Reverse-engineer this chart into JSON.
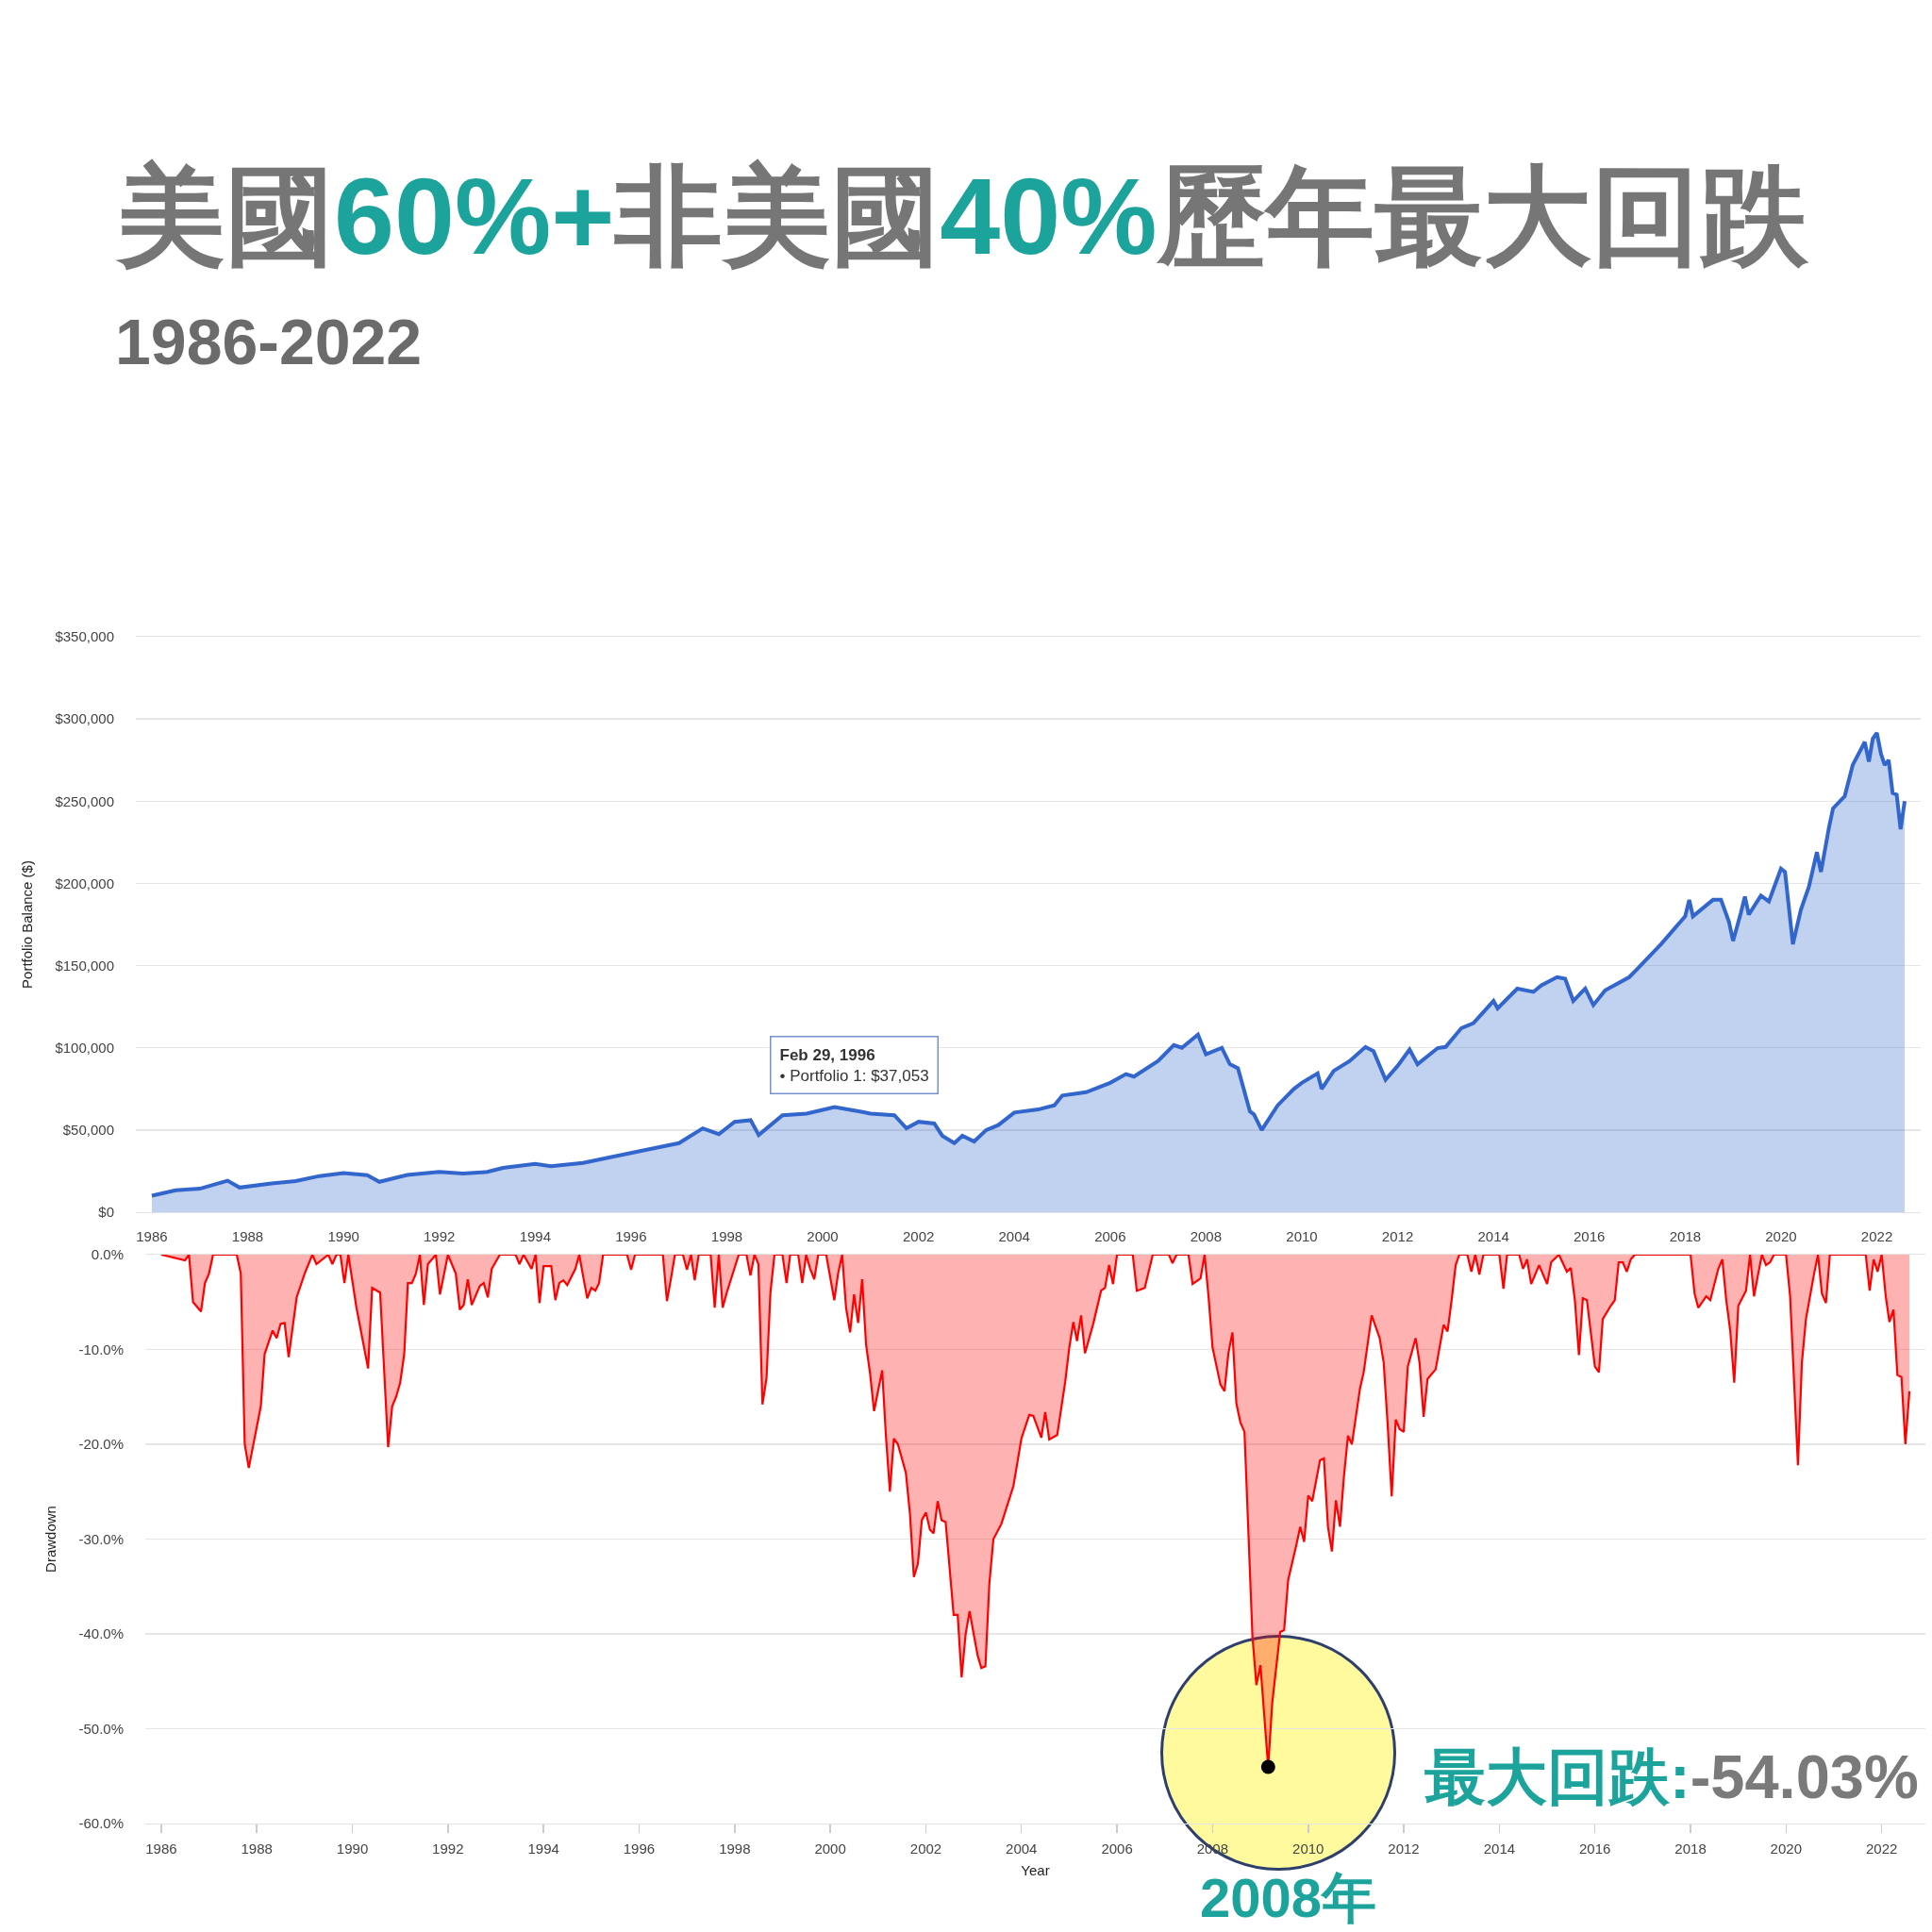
{
  "chart_data": [
    {
      "type": "area",
      "title": "美國60%+非美國40%歷年最大回跌",
      "subtitle": "1986-2022",
      "ylabel": "Portfolio Balance ($)",
      "color": "#3366cc",
      "grid": "y",
      "x": [
        "1986-01",
        "1986-07",
        "1987-01",
        "1987-08",
        "1987-11",
        "1988-07",
        "1989-01",
        "1989-07",
        "1990-01",
        "1990-07",
        "1990-10",
        "1991-05",
        "1992-01",
        "1992-07",
        "1993-01",
        "1993-05",
        "1994-01",
        "1994-05",
        "1995-01",
        "1995-07",
        "1996-02-29",
        "1996-07",
        "1997-01",
        "1997-07",
        "1997-11",
        "1998-03",
        "1998-07",
        "1998-09",
        "1999-03",
        "1999-09",
        "2000-04",
        "2000-11",
        "2001-01",
        "2001-07",
        "2001-10",
        "2002-01",
        "2002-05",
        "2002-07",
        "2002-10",
        "2002-12",
        "2003-03",
        "2003-06",
        "2003-09",
        "2004-01",
        "2004-07",
        "2004-11",
        "2005-01",
        "2005-07",
        "2006-01",
        "2006-05",
        "2006-07",
        "2007-01",
        "2007-05",
        "2007-07",
        "2007-11",
        "2008-01",
        "2008-05",
        "2008-07",
        "2008-09",
        "2008-12",
        "2009-01",
        "2009-03",
        "2009-07",
        "2009-11",
        "2010-01",
        "2010-05",
        "2010-06",
        "2010-09",
        "2011-01",
        "2011-05",
        "2011-07",
        "2011-10",
        "2012-01",
        "2012-04",
        "2012-06",
        "2012-11",
        "2013-01",
        "2013-05",
        "2013-08",
        "2014-01",
        "2014-02",
        "2014-07",
        "2014-11",
        "2015-01",
        "2015-05",
        "2015-07",
        "2015-09",
        "2015-12",
        "2016-02",
        "2016-05",
        "2016-11",
        "2017-01",
        "2017-07",
        "2018-01",
        "2018-02",
        "2018-03",
        "2018-08",
        "2018-10",
        "2018-12",
        "2019-01",
        "2019-03",
        "2019-04",
        "2019-05",
        "2019-08",
        "2019-10",
        "2020-01",
        "2020-02",
        "2020-04",
        "2020-06",
        "2020-08",
        "2020-10",
        "2020-11",
        "2021-01",
        "2021-02",
        "2021-05",
        "2021-07",
        "2021-10",
        "2021-11",
        "2021-12",
        "2022-01",
        "2022-02",
        "2022-03",
        "2022-04",
        "2022-05",
        "2022-06",
        "2022-07",
        "2022-08"
      ],
      "values": [
        10000,
        13300,
        14300,
        19200,
        15000,
        17500,
        18900,
        22000,
        23800,
        22500,
        18500,
        22700,
        24500,
        23500,
        24500,
        27000,
        29400,
        28000,
        30000,
        33000,
        37053,
        39000,
        42000,
        51000,
        47500,
        55000,
        56000,
        47000,
        59000,
        60000,
        64000,
        61000,
        60000,
        59000,
        51000,
        55000,
        54000,
        46500,
        42000,
        46500,
        43000,
        50000,
        53000,
        60600,
        62500,
        65000,
        71000,
        73000,
        78700,
        84000,
        82500,
        92000,
        101700,
        100000,
        108000,
        96000,
        100000,
        90000,
        87500,
        61400,
        59500,
        50000,
        65000,
        75000,
        78700,
        84400,
        75000,
        86000,
        92000,
        100500,
        98000,
        80600,
        89000,
        99000,
        90000,
        99800,
        100500,
        112000,
        115000,
        128500,
        124000,
        136000,
        134000,
        138000,
        143000,
        142000,
        128500,
        136000,
        126000,
        135000,
        143000,
        148000,
        163000,
        180000,
        190000,
        180000,
        190000,
        190000,
        176500,
        165000,
        182000,
        192000,
        181000,
        192600,
        189000,
        209000,
        207000,
        163000,
        184000,
        198000,
        219000,
        207000,
        234000,
        245600,
        253000,
        272000,
        286000,
        274000,
        288000,
        291600,
        279000,
        272000,
        275000,
        255000,
        254000,
        233000,
        250000
      ],
      "xlim": [
        "1985-09-01",
        "2022-12-01"
      ],
      "xticks": [
        "1986",
        "1988",
        "1990",
        "1992",
        "1994",
        "1996",
        "1998",
        "2000",
        "2002",
        "2004",
        "2006",
        "2008",
        "2010",
        "2012",
        "2014",
        "2016",
        "2018",
        "2020",
        "2022"
      ],
      "ylim": [
        0,
        350000
      ],
      "yticks": [
        {
          "value": 0,
          "label": "$0"
        },
        {
          "value": 50000,
          "label": "$50,000"
        },
        {
          "value": 100000,
          "label": "$100,000"
        },
        {
          "value": 150000,
          "label": "$150,000"
        },
        {
          "value": 200000,
          "label": "$200,000"
        },
        {
          "value": 250000,
          "label": "$250,000"
        },
        {
          "value": 300000,
          "label": "$300,000"
        },
        {
          "value": 350000,
          "label": "$350,000"
        }
      ],
      "annotations": [
        "Feb 29, 1996\n• Portfolio 1: $37,053"
      ]
    },
    {
      "type": "area",
      "xlabel": "Year",
      "ylabel": "Drawdown",
      "color": "#ff0000",
      "grid": "y",
      "x": [
        "1986-01",
        "1986-07",
        "1986-08",
        "1986-09",
        "1986-11",
        "1986-12",
        "1987-01",
        "1987-02",
        "1987-08",
        "1987-09",
        "1987-10",
        "1987-11",
        "1988-02",
        "1988-03",
        "1988-05",
        "1988-06",
        "1988-07",
        "1988-08",
        "1988-09",
        "1988-11",
        "1989-01",
        "1989-03",
        "1989-04",
        "1989-07",
        "1989-08",
        "1989-09",
        "1989-10",
        "1989-11",
        "1989-12",
        "1990-02",
        "1990-05",
        "1990-06",
        "1990-08",
        "1990-10",
        "1990-11",
        "1990-12",
        "1991-01",
        "1991-02",
        "1991-03",
        "1991-04",
        "1991-05",
        "1991-06",
        "1991-07",
        "1991-08",
        "1991-10",
        "1991-11",
        "1992-01",
        "1992-03",
        "1992-04",
        "1992-05",
        "1992-06",
        "1992-07",
        "1992-09",
        "1992-10",
        "1992-11",
        "1992-12",
        "1993-02",
        "1993-06",
        "1993-07",
        "1993-08",
        "1993-10",
        "1993-11",
        "1993-12",
        "1994-01",
        "1994-03",
        "1994-04",
        "1994-05",
        "1994-06",
        "1994-07",
        "1994-09",
        "1994-10",
        "1994-11",
        "1994-12",
        "1995-01",
        "1995-02",
        "1995-03",
        "1995-04",
        "1995-10",
        "1995-11",
        "1995-12",
        "1996-07",
        "1996-08",
        "1996-09",
        "1996-10",
        "1996-12",
        "1997-01",
        "1997-02",
        "1997-03",
        "1997-04",
        "1997-07",
        "1997-08",
        "1997-09",
        "1997-10",
        "1997-11",
        "1998-02",
        "1998-04",
        "1998-05",
        "1998-06",
        "1998-07",
        "1998-08",
        "1998-09",
        "1998-10",
        "1998-11",
        "1999-01",
        "1999-02",
        "1999-03",
        "1999-05",
        "1999-06",
        "1999-07",
        "1999-08",
        "1999-09",
        "1999-10",
        "1999-12",
        "2000-02",
        "2000-03",
        "2000-04",
        "2000-05",
        "2000-06",
        "2000-07",
        "2000-08",
        "2000-09",
        "2000-10",
        "2000-11",
        "2000-12",
        "2001-02",
        "2001-03",
        "2001-04",
        "2001-05",
        "2001-06",
        "2001-08",
        "2001-09",
        "2001-10",
        "2001-11",
        "2001-12",
        "2002-01",
        "2002-02",
        "2002-03",
        "2002-04",
        "2002-05",
        "2002-06",
        "2002-07",
        "2002-08",
        "2002-09",
        "2002-10",
        "2002-11",
        "2002-12",
        "2003-01",
        "2003-02",
        "2003-03",
        "2003-04",
        "2003-05",
        "2003-06",
        "2003-08",
        "2003-11",
        "2004-01",
        "2004-03",
        "2004-04",
        "2004-06",
        "2004-07",
        "2004-08",
        "2004-10",
        "2004-12",
        "2005-01",
        "2005-02",
        "2005-03",
        "2005-04",
        "2005-05",
        "2005-07",
        "2005-09",
        "2005-10",
        "2005-11",
        "2005-12",
        "2006-01",
        "2006-05",
        "2006-06",
        "2006-08",
        "2006-10",
        "2007-02",
        "2007-03",
        "2007-04",
        "2007-07",
        "2007-08",
        "2007-10",
        "2007-11",
        "2007-12",
        "2008-01",
        "2008-03",
        "2008-04",
        "2008-05",
        "2008-06",
        "2008-07",
        "2008-08",
        "2008-09",
        "2008-11",
        "2008-12",
        "2009-01",
        "2009-03",
        "2009-04",
        "2009-06",
        "2009-07",
        "2009-08",
        "2009-10",
        "2009-11",
        "2009-12",
        "2010-01",
        "2010-02",
        "2010-04",
        "2010-05",
        "2010-06",
        "2010-07",
        "2010-08",
        "2010-09",
        "2010-10",
        "2010-11",
        "2010-12",
        "2011-02",
        "2011-03",
        "2011-05",
        "2011-07",
        "2011-08",
        "2011-09",
        "2011-10",
        "2011-11",
        "2011-12",
        "2012-01",
        "2012-02",
        "2012-04",
        "2012-05",
        "2012-06",
        "2012-07",
        "2012-09",
        "2012-11",
        "2012-12",
        "2013-01",
        "2013-02",
        "2013-03",
        "2013-05",
        "2013-06",
        "2013-07",
        "2013-08",
        "2013-09",
        "2014-01",
        "2014-02",
        "2014-03",
        "2014-06",
        "2014-07",
        "2014-08",
        "2014-09",
        "2014-11",
        "2014-12",
        "2015-01",
        "2015-02",
        "2015-04",
        "2015-06",
        "2015-07",
        "2015-08",
        "2015-09",
        "2015-10",
        "2015-11",
        "2016-01",
        "2016-02",
        "2016-03",
        "2016-05",
        "2016-06",
        "2016-07",
        "2016-08",
        "2016-09",
        "2016-10",
        "2016-11",
        "2018-01",
        "2018-02",
        "2018-03",
        "2018-05",
        "2018-06",
        "2018-08",
        "2018-09",
        "2018-10",
        "2018-11",
        "2018-12",
        "2019-01",
        "2019-03",
        "2019-04",
        "2019-05",
        "2019-06",
        "2019-07",
        "2019-08",
        "2019-09",
        "2019-10",
        "2020-01",
        "2020-02",
        "2020-04",
        "2020-05",
        "2020-06",
        "2020-08",
        "2020-09",
        "2020-10",
        "2020-11",
        "2020-12",
        "2021-09",
        "2021-10",
        "2021-11",
        "2021-12",
        "2022-01",
        "2022-02",
        "2022-03",
        "2022-04",
        "2022-05",
        "2022-06",
        "2022-07",
        "2022-08"
      ],
      "values": [
        0,
        -0.6,
        0,
        -5,
        -6,
        -3,
        -2,
        0,
        0,
        -2,
        -20,
        -22.5,
        -16,
        -10.5,
        -8,
        -8.8,
        -7.3,
        -7.2,
        -10.8,
        -4.5,
        -2,
        0,
        -1,
        0,
        -1,
        0,
        0,
        -3,
        0,
        -5.6,
        -12,
        -3.5,
        -4,
        -20.3,
        -16,
        -15,
        -13.5,
        -10.5,
        -3,
        -3,
        -2,
        0,
        -5.3,
        -1,
        0,
        -4.2,
        0,
        -2,
        -5.8,
        -5.3,
        -2.6,
        -5.3,
        -3.3,
        -3,
        -4.5,
        -1.5,
        0,
        0,
        -1,
        0,
        -1.5,
        0,
        -5.1,
        -1.2,
        -1.2,
        -4.8,
        -3,
        -2.7,
        -3.2,
        -1.5,
        0,
        -2.4,
        -4.6,
        -3.5,
        -3.8,
        -3,
        0,
        0,
        -1.6,
        0,
        0,
        -4.9,
        -2.5,
        0,
        0,
        -1.6,
        0,
        -2.7,
        0,
        0,
        -5.6,
        0,
        -5.6,
        -4,
        0,
        0,
        -2.2,
        0,
        -1,
        -15.8,
        -13,
        -4,
        0,
        0,
        -3,
        0,
        0,
        -3,
        0,
        -1.5,
        -2.6,
        0,
        0,
        -4.8,
        -2,
        0,
        -5.6,
        -8.2,
        -4.2,
        -7.2,
        -2.6,
        -9.5,
        -12.6,
        -16.5,
        -12.2,
        -19,
        -25,
        -19.4,
        -20,
        -23,
        -27.3,
        -34,
        -32.6,
        -28,
        -27.2,
        -29,
        -29.4,
        -26,
        -28,
        -28.2,
        -33,
        -38,
        -38,
        -44.6,
        -40,
        -37.6,
        -40,
        -42.3,
        -43.6,
        -43.4,
        -34.7,
        -30,
        -28.4,
        -24.4,
        -19.4,
        -16.9,
        -17,
        -19.3,
        -16.6,
        -19.5,
        -19,
        -13.4,
        -9.8,
        -7.1,
        -9.1,
        -6.4,
        -10.4,
        -7.4,
        -3.8,
        -3.5,
        -1.1,
        -3.1,
        0,
        0,
        -3.8,
        -3.5,
        0,
        0,
        -0.9,
        0,
        0,
        -3.1,
        -2.5,
        0,
        -4.4,
        -9.8,
        -13.7,
        -14.4,
        -10.4,
        -8.2,
        -15.7,
        -17.7,
        -18.7,
        -40.3,
        -45.4,
        -43.3,
        -54.03,
        -47.3,
        -39.8,
        -39.6,
        -34.3,
        -30.7,
        -28.7,
        -30.3,
        -25.4,
        -26,
        -21.7,
        -21.5,
        -28.7,
        -31.3,
        -25.9,
        -28.7,
        -23.4,
        -19.1,
        -20,
        -14.1,
        -12.4,
        -6.4,
        -8.8,
        -11.4,
        -18.1,
        -25.5,
        -17.4,
        -18.4,
        -18.7,
        -11.8,
        -8.8,
        -11.4,
        -17.1,
        -13.1,
        -12.1,
        -7.4,
        -8.1,
        -4.8,
        -1.1,
        0,
        0,
        -1.8,
        0,
        -2.1,
        0,
        0,
        -3.6,
        0,
        0,
        -1.5,
        -0.5,
        -3.1,
        -1.1,
        -2.1,
        -3.1,
        -0.8,
        0,
        -1.8,
        -1.4,
        -4.8,
        -10.6,
        -4.6,
        -4.8,
        -11.8,
        -12.4,
        -6.8,
        -5.4,
        -4.8,
        -0.8,
        -0.8,
        -1.8,
        -0.5,
        0,
        0,
        -4.1,
        -5.6,
        -4.4,
        -4.8,
        -1.5,
        -0.5,
        -4.8,
        -8.1,
        -13.5,
        -5.4,
        -3.8,
        0,
        -4.4,
        -2.1,
        0,
        -1.1,
        -0.8,
        0,
        0,
        -4.4,
        -22.2,
        -11.4,
        -6.8,
        -2.1,
        0,
        -4.1,
        -5.1,
        0,
        0,
        -3.8,
        -0.5,
        -1.8,
        0,
        -4.4,
        -7.1,
        -5.8,
        -12.7,
        -12.9,
        -20,
        -14.4
      ],
      "xlim": [
        "1985-09-01",
        "2022-12-01"
      ],
      "xticks": [
        "1986",
        "1988",
        "1990",
        "1992",
        "1994",
        "1996",
        "1998",
        "2000",
        "2002",
        "2004",
        "2006",
        "2008",
        "2010",
        "2012",
        "2014",
        "2016",
        "2018",
        "2020",
        "2022"
      ],
      "ylim": [
        -60,
        0
      ],
      "yticks": [
        {
          "value": 0,
          "label": "0.0%"
        },
        {
          "value": -10,
          "label": "-10.0%"
        },
        {
          "value": -20,
          "label": "-20.0%"
        },
        {
          "value": -30,
          "label": "-30.0%"
        },
        {
          "value": -40,
          "label": "-40.0%"
        },
        {
          "value": -50,
          "label": "-50.0%"
        },
        {
          "value": -60,
          "label": "-60.0%"
        }
      ],
      "annotations": [
        {
          "text": "最大回跌:-54.03%",
          "x": "2009-03",
          "y": -54.03
        },
        "2008年"
      ]
    }
  ]
}
